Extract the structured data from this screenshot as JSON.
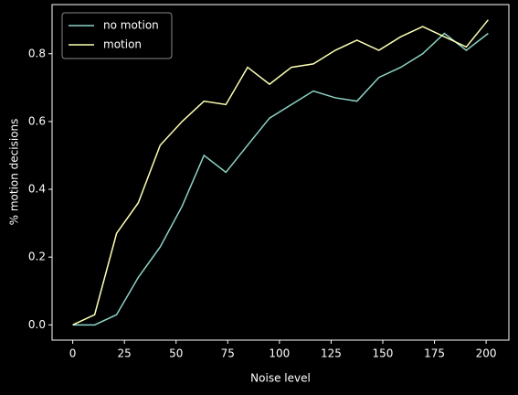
{
  "chart_data": {
    "type": "line",
    "xlabel": "Noise level",
    "ylabel": "% motion decisions",
    "x": [
      0,
      10.6,
      21.2,
      31.7,
      42.3,
      52.9,
      63.5,
      74.1,
      84.6,
      95.2,
      105.8,
      116.4,
      127,
      137.5,
      148.1,
      158.7,
      169.3,
      179.8,
      190.4,
      201
    ],
    "series": [
      {
        "name": "no motion",
        "color": "#8dd3c7",
        "values": [
          0,
          0,
          0.03,
          0.14,
          0.23,
          0.35,
          0.5,
          0.45,
          0.53,
          0.61,
          0.65,
          0.69,
          0.67,
          0.66,
          0.73,
          0.76,
          0.8,
          0.86,
          0.81,
          0.86
        ]
      },
      {
        "name": "motion",
        "color": "#feffb3",
        "values": [
          0,
          0.03,
          0.27,
          0.36,
          0.53,
          0.6,
          0.66,
          0.65,
          0.76,
          0.71,
          0.76,
          0.77,
          0.81,
          0.84,
          0.81,
          0.85,
          0.88,
          0.85,
          0.82,
          0.9
        ]
      }
    ],
    "xlim": [
      -10,
      211
    ],
    "xticks": [
      0,
      25,
      50,
      75,
      100,
      125,
      150,
      175,
      200
    ],
    "ylim": [
      -0.045,
      0.945
    ],
    "yticks": [
      {
        "value": 0,
        "label": "0.0"
      },
      {
        "value": 0.2,
        "label": "0.2"
      },
      {
        "value": 0.4,
        "label": "0.4"
      },
      {
        "value": 0.6,
        "label": "0.6"
      },
      {
        "value": 0.8,
        "label": "0.8"
      }
    ],
    "legend": "upper left"
  }
}
